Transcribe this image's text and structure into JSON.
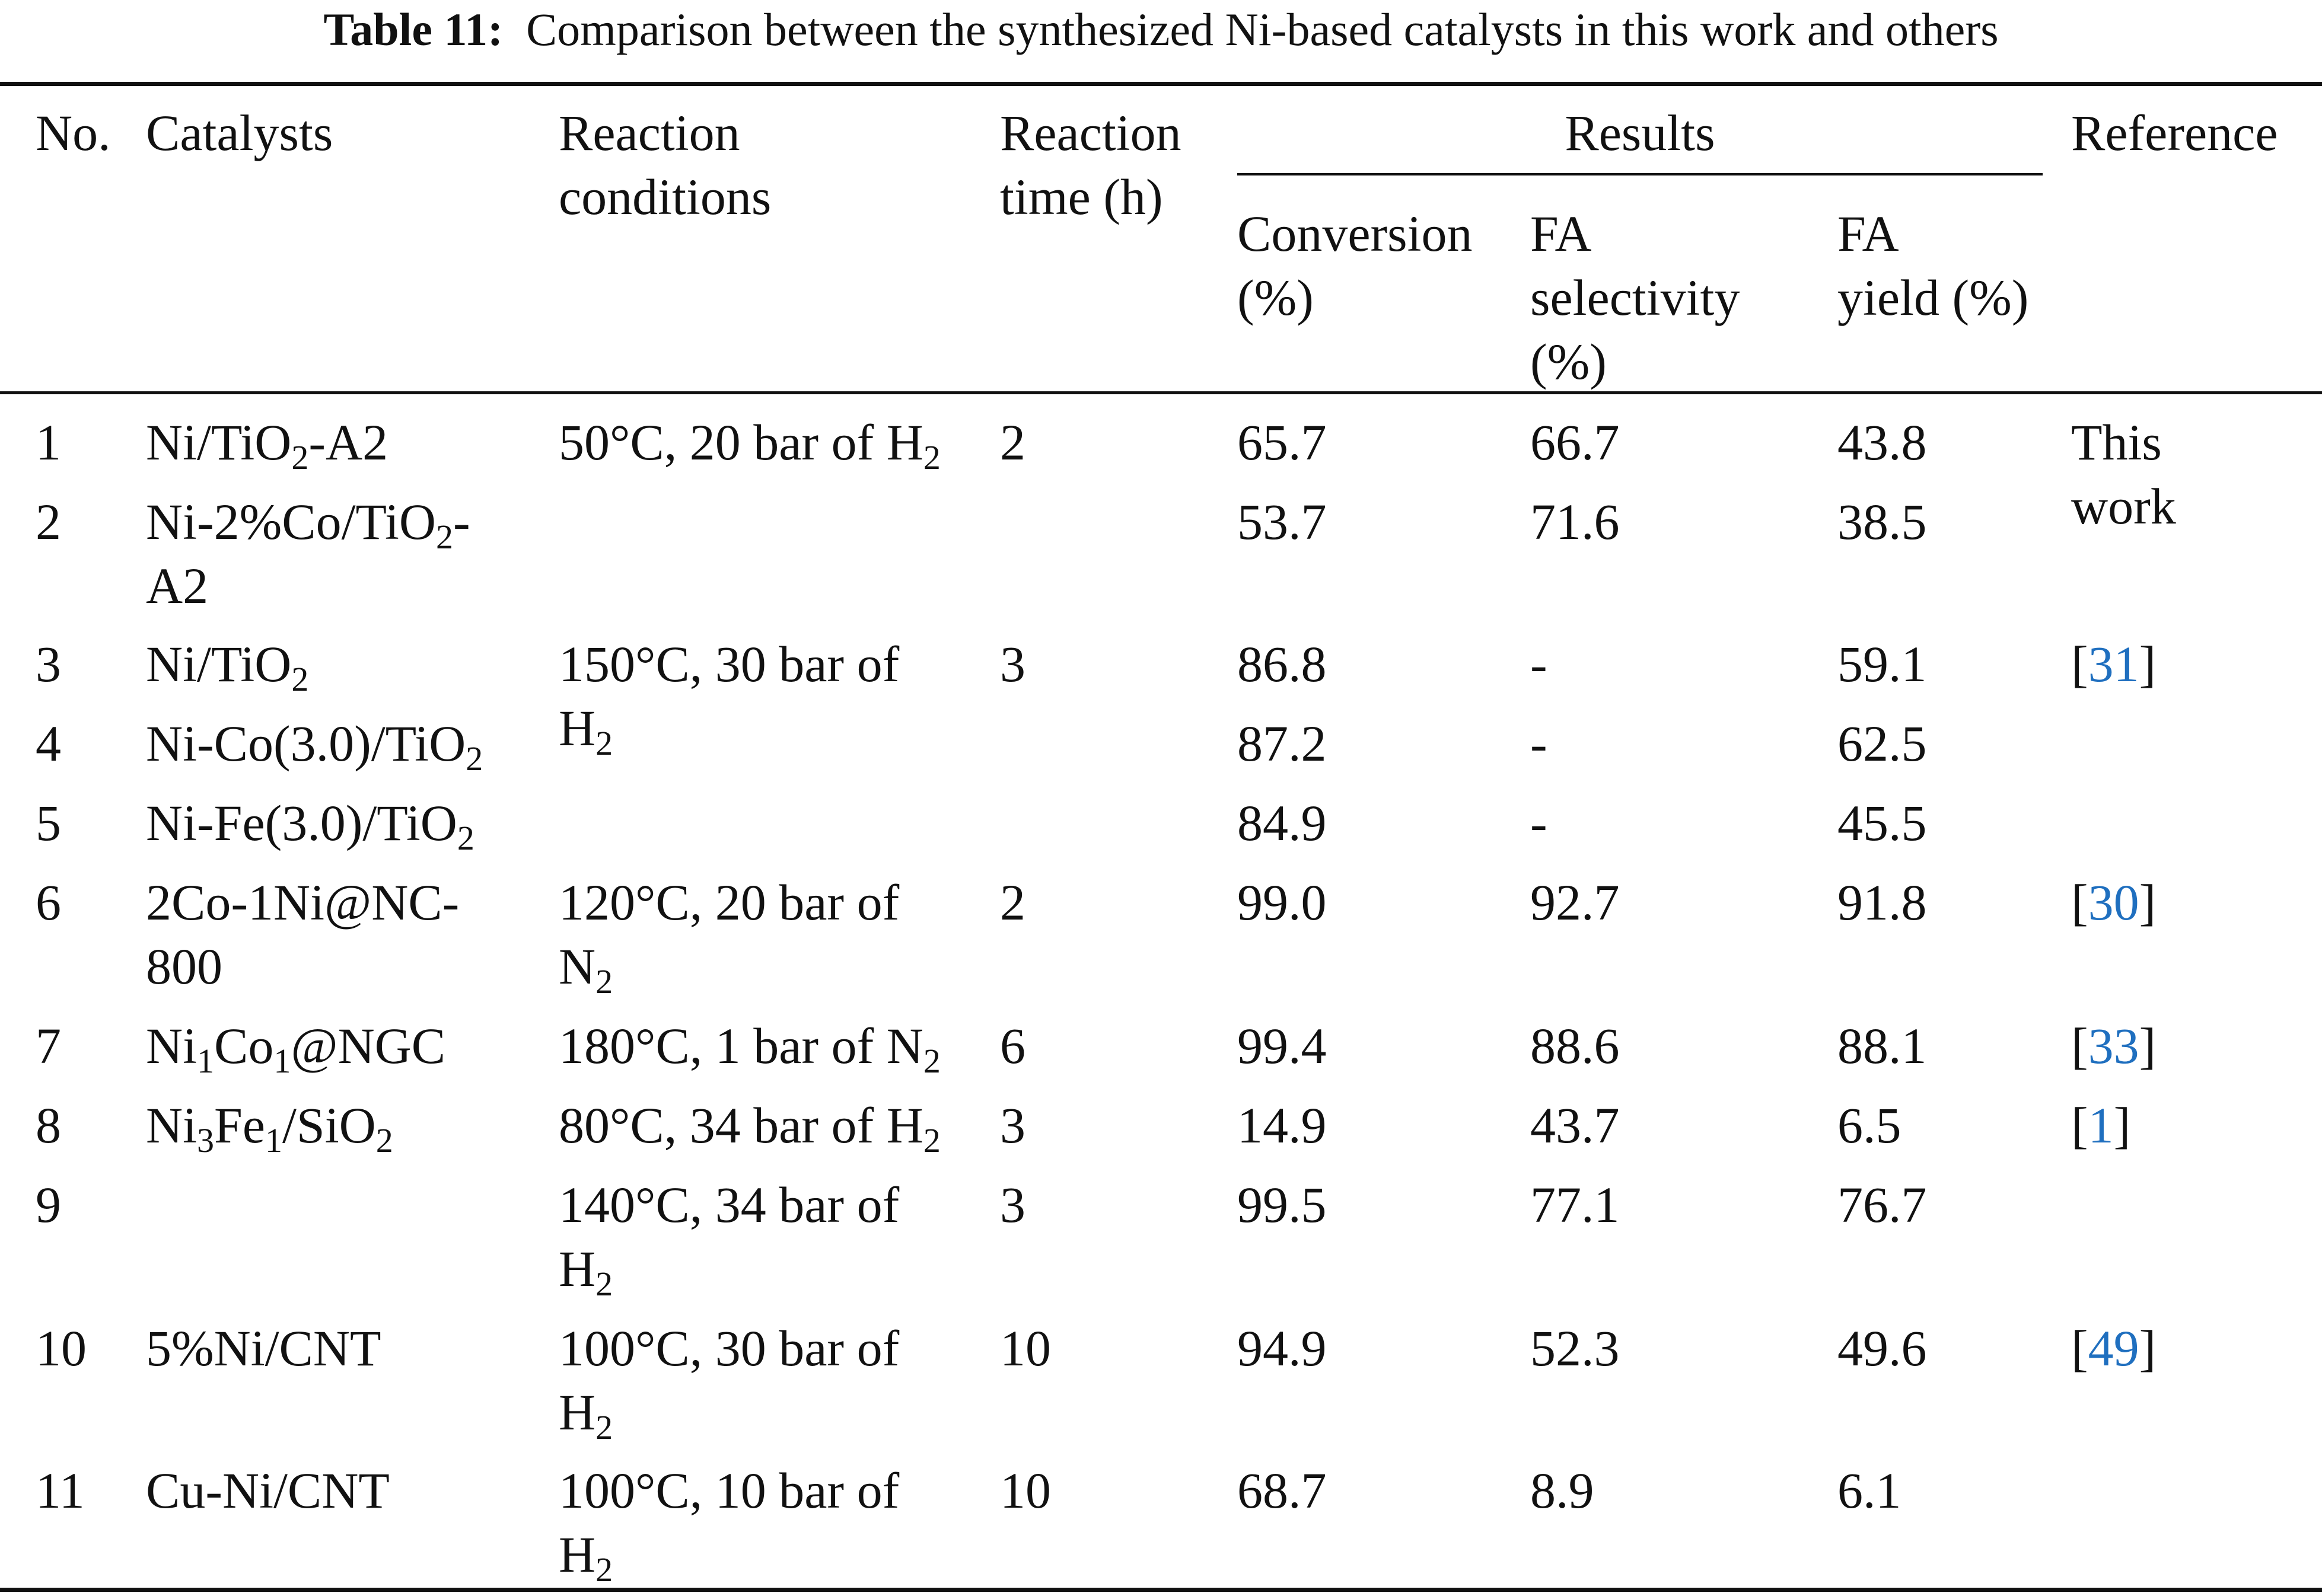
{
  "caption": {
    "label": "Table 11:",
    "text": "Comparison between the synthesized Ni-based catalysts in this work and others"
  },
  "headers": {
    "no": "No.",
    "catalysts": "Catalysts",
    "conditions_1": "Reaction",
    "conditions_2": "conditions",
    "time_1": "Reaction",
    "time_2": "time (h)",
    "results": "Results",
    "reference": "Reference",
    "conversion_1": "Conversion",
    "conversion_2": "(%)",
    "selectivity_1": "FA",
    "selectivity_2": "selectivity",
    "selectivity_3": "(%)",
    "yield_1": "FA",
    "yield_2": "yield (%)"
  },
  "rows": [
    {
      "no": "1",
      "conversion": "65.7",
      "selectivity": "66.7",
      "yield": "43.8",
      "time": "2",
      "catalyst": {
        "a": "Ni/TiO",
        "b": "2",
        "c": "-A2"
      },
      "condition": {
        "a": "50°C, 20 bar of H",
        "b": "2"
      },
      "reference": {
        "line1": "This",
        "line2": "work"
      }
    },
    {
      "no": "2",
      "conversion": "53.7",
      "selectivity": "71.6",
      "yield": "38.5",
      "catalyst": {
        "a": "Ni-2%Co/TiO",
        "b": "2",
        "c": "-",
        "line2": "A2"
      }
    },
    {
      "no": "3",
      "conversion": "86.8",
      "selectivity": "-",
      "yield": "59.1",
      "time": "3",
      "catalyst": {
        "a": "Ni/TiO",
        "b": "2"
      },
      "condition": {
        "line1": "150°C, 30 bar of",
        "a": "H",
        "b": "2"
      },
      "reference": {
        "open": "[",
        "num": "31",
        "close": "]"
      }
    },
    {
      "no": "4",
      "conversion": "87.2",
      "selectivity": "-",
      "yield": "62.5",
      "catalyst": {
        "a": "Ni-Co(3.0)/TiO",
        "b": "2"
      }
    },
    {
      "no": "5",
      "conversion": "84.9",
      "selectivity": "-",
      "yield": "45.5",
      "catalyst": {
        "a": "Ni-Fe(3.0)/TiO",
        "b": "2"
      }
    },
    {
      "no": "6",
      "conversion": "99.0",
      "selectivity": "92.7",
      "yield": "91.8",
      "time": "2",
      "catalyst": {
        "line1": "2Co-1Ni@NC-",
        "line2": "800"
      },
      "condition": {
        "line1": "120°C, 20 bar of",
        "a": "N",
        "b": "2"
      },
      "reference": {
        "open": "[",
        "num": "30",
        "close": "]"
      }
    },
    {
      "no": "7",
      "conversion": "99.4",
      "selectivity": "88.6",
      "yield": "88.1",
      "time": "6",
      "catalyst": {
        "a": "Ni",
        "b": "1",
        "c": "Co",
        "d": "1",
        "e": "@NGC"
      },
      "condition": {
        "a": "180°C, 1 bar of N",
        "b": "2"
      },
      "reference": {
        "open": "[",
        "num": "33",
        "close": "]"
      }
    },
    {
      "no": "8",
      "conversion": "14.9",
      "selectivity": "43.7",
      "yield": "6.5",
      "time": "3",
      "catalyst": {
        "a": "Ni",
        "b": "3",
        "c": "Fe",
        "d": "1",
        "e": "/SiO",
        "f": "2"
      },
      "condition": {
        "a": "80°C, 34 bar of H",
        "b": "2"
      },
      "reference": {
        "open": "[",
        "num": "1",
        "close": "]"
      }
    },
    {
      "no": "9",
      "conversion": "99.5",
      "selectivity": "77.1",
      "yield": "76.7",
      "time": "3",
      "condition": {
        "line1": "140°C, 34 bar of",
        "a": "H",
        "b": "2"
      }
    },
    {
      "no": "10",
      "conversion": "94.9",
      "selectivity": "52.3",
      "yield": "49.6",
      "time": "10",
      "catalyst": {
        "a": "5%Ni/CNT"
      },
      "condition": {
        "line1": "100°C, 30 bar of",
        "a": "H",
        "b": "2"
      },
      "reference": {
        "open": "[",
        "num": "49",
        "close": "]"
      }
    },
    {
      "no": "11",
      "conversion": "68.7",
      "selectivity": "8.9",
      "yield": "6.1",
      "time": "10",
      "catalyst": {
        "a": "Cu-Ni/CNT"
      },
      "condition": {
        "line1": "100°C, 10 bar of",
        "a": "H",
        "b": "2"
      }
    }
  ]
}
